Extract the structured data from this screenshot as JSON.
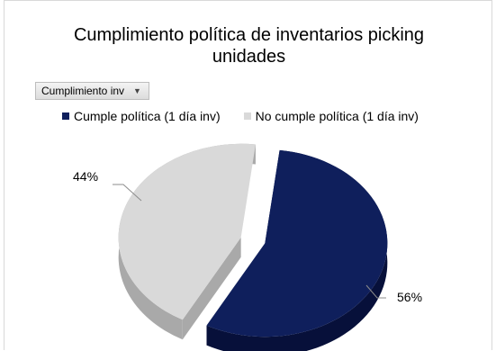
{
  "filter": {
    "label": "Cumplimiento inv"
  },
  "chart_data": {
    "type": "pie",
    "title": "Cumplimiento política de inventarios picking unidades",
    "title_lines": [
      "Cumplimiento política de inventarios picking",
      "unidades"
    ],
    "categories": [
      "Cumple política  (1 día inv)",
      "No cumple política (1 día inv)"
    ],
    "values": [
      56,
      44
    ],
    "data_labels": [
      "56%",
      "44%"
    ],
    "colors": [
      "#0f1f5c",
      "#d9d9d9"
    ],
    "legend_position": "top",
    "exploded": true,
    "style": "3d"
  }
}
